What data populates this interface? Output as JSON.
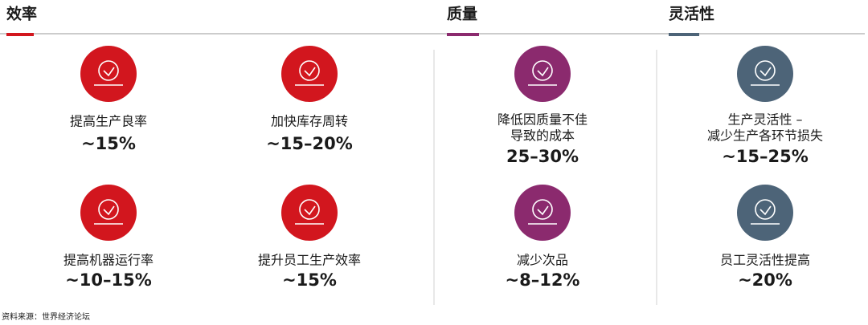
{
  "sections": [
    {
      "title": "效率",
      "items": [
        {
          "label": [
            "提高生产良率"
          ],
          "value": "~15%"
        },
        {
          "label": [
            "加快库存周转"
          ],
          "value": "~15–20%"
        },
        {
          "label": [
            "提高机器运行率"
          ],
          "value": "~10–15%"
        },
        {
          "label": [
            "提升员工生产效率"
          ],
          "value": "~15%"
        }
      ]
    },
    {
      "title": "质量",
      "items": [
        {
          "label": [
            "降低因质量不佳",
            "导致的成本"
          ],
          "value": "25–30%"
        },
        {
          "label": [
            "减少次品"
          ],
          "value": "~8–12%"
        }
      ]
    },
    {
      "title": "灵活性",
      "items": [
        {
          "label": [
            "生产灵活性 –",
            "减少生产各环节损失"
          ],
          "value": "~15–25%"
        },
        {
          "label": [
            "员工灵活性提高"
          ],
          "value": "~20%"
        }
      ]
    }
  ],
  "source": "资料来源：世界经济论坛"
}
